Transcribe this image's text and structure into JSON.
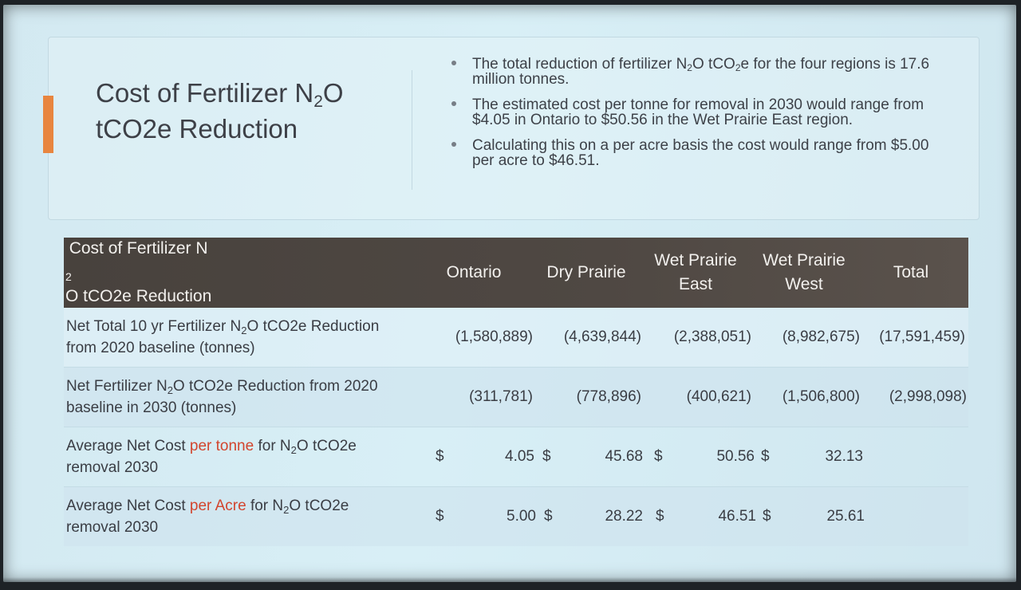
{
  "title": {
    "line1_pre": "Cost of Fertilizer N",
    "line1_sub": "2",
    "line1_post": "O",
    "line2": "tCO2e Reduction"
  },
  "bullets": [
    {
      "pre": "The total reduction of fertilizer N",
      "sub1": "2",
      "mid": "O tCO",
      "sub2": "2",
      "post": "e for the four regions is 17.6 million tonnes."
    },
    {
      "text": "The estimated cost per tonne for removal in 2030 would range from $4.05 in Ontario to $50.56 in the Wet Prairie East region."
    },
    {
      "text": "Calculating this on a per acre basis the cost would range from $5.00 per acre to $46.51."
    }
  ],
  "table": {
    "header": {
      "label_pre": "Cost of Fertilizer N",
      "label_sub": "2",
      "label_post": "O tCO2e Reduction",
      "columns": [
        {
          "line1": "Ontario",
          "line2": ""
        },
        {
          "line1": "Dry Prairie",
          "line2": ""
        },
        {
          "line1": "Wet Prairie",
          "line2": "East"
        },
        {
          "line1": "Wet Prairie",
          "line2": "West"
        },
        {
          "line1": "Total",
          "line2": ""
        }
      ]
    },
    "rows": [
      {
        "label_a": "Net Total 10 yr Fertilizer N",
        "label_sub": "2",
        "label_b": "O tCO2e Reduction",
        "label_c": "from 2020 baseline (tonnes)",
        "currency": "",
        "values": [
          "(1,580,889)",
          "(4,639,844)",
          "(2,388,051)",
          "(8,982,675)",
          "(17,591,459)"
        ]
      },
      {
        "label_a": "Net Fertilizer N",
        "label_sub": "2",
        "label_b": "O tCO2e Reduction from 2020",
        "label_c": "baseline in 2030 (tonnes)",
        "currency": "",
        "values": [
          "(311,781)",
          "(778,896)",
          "(400,621)",
          "(1,506,800)",
          "(2,998,098)"
        ]
      },
      {
        "label_a": "Average Net Cost ",
        "label_red": "per tonne",
        "label_b": " for N",
        "label_sub": "2",
        "label_c": "O tCO2e",
        "label_d": "removal 2030",
        "currency": "$",
        "values": [
          "4.05",
          "45.68",
          "50.56",
          "32.13"
        ]
      },
      {
        "label_a": "Average Net Cost ",
        "label_red": "per Acre",
        "label_b": " for N",
        "label_sub": "2",
        "label_c": "O tCO2e",
        "label_d": "removal 2030",
        "currency": "$",
        "values": [
          "5.00",
          "28.22",
          "46.51",
          "25.61"
        ]
      }
    ]
  },
  "colors": {
    "accent": "#e8853f",
    "header_bg": "#4b4540",
    "highlight_red": "#d2452e",
    "slide_bg": "#d6edf4"
  }
}
